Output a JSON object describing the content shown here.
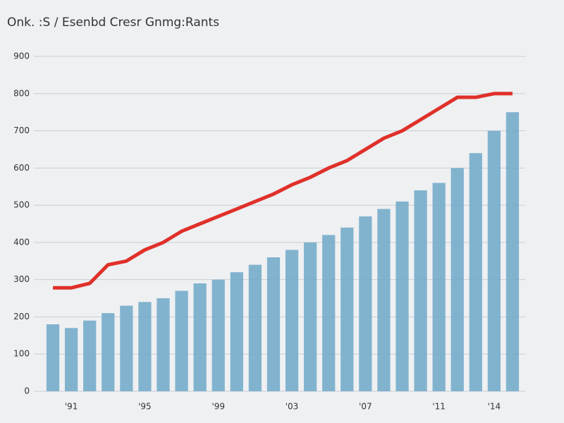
{
  "chart_data": {
    "type": "bar-line",
    "title": "Onk. :S / Esenbd Cresr Gnmg:Rants",
    "categories": [
      null,
      "'91",
      null,
      null,
      null,
      "'95",
      null,
      null,
      null,
      "'99",
      null,
      null,
      null,
      "'03",
      null,
      null,
      null,
      "'07",
      null,
      null,
      null,
      "'11",
      null,
      null,
      "'14",
      null
    ],
    "series": [
      {
        "type": "bar",
        "color": "#6fa8c8",
        "values": [
          180,
          170,
          190,
          210,
          230,
          240,
          250,
          270,
          290,
          300,
          320,
          340,
          360,
          380,
          400,
          420,
          440,
          470,
          490,
          510,
          540,
          560,
          600,
          640,
          700,
          750
        ]
      },
      {
        "type": "line",
        "color": "#e0302a",
        "values": [
          278,
          278,
          290,
          340,
          350,
          380,
          400,
          430,
          450,
          470,
          490,
          510,
          530,
          555,
          575,
          600,
          620,
          650,
          680,
          700,
          730,
          760,
          790,
          790,
          800,
          800
        ]
      }
    ],
    "ylim": [
      0,
      900
    ],
    "yticks": [
      0,
      100,
      200,
      300,
      400,
      500,
      600,
      700,
      800,
      900
    ],
    "grid": true
  }
}
